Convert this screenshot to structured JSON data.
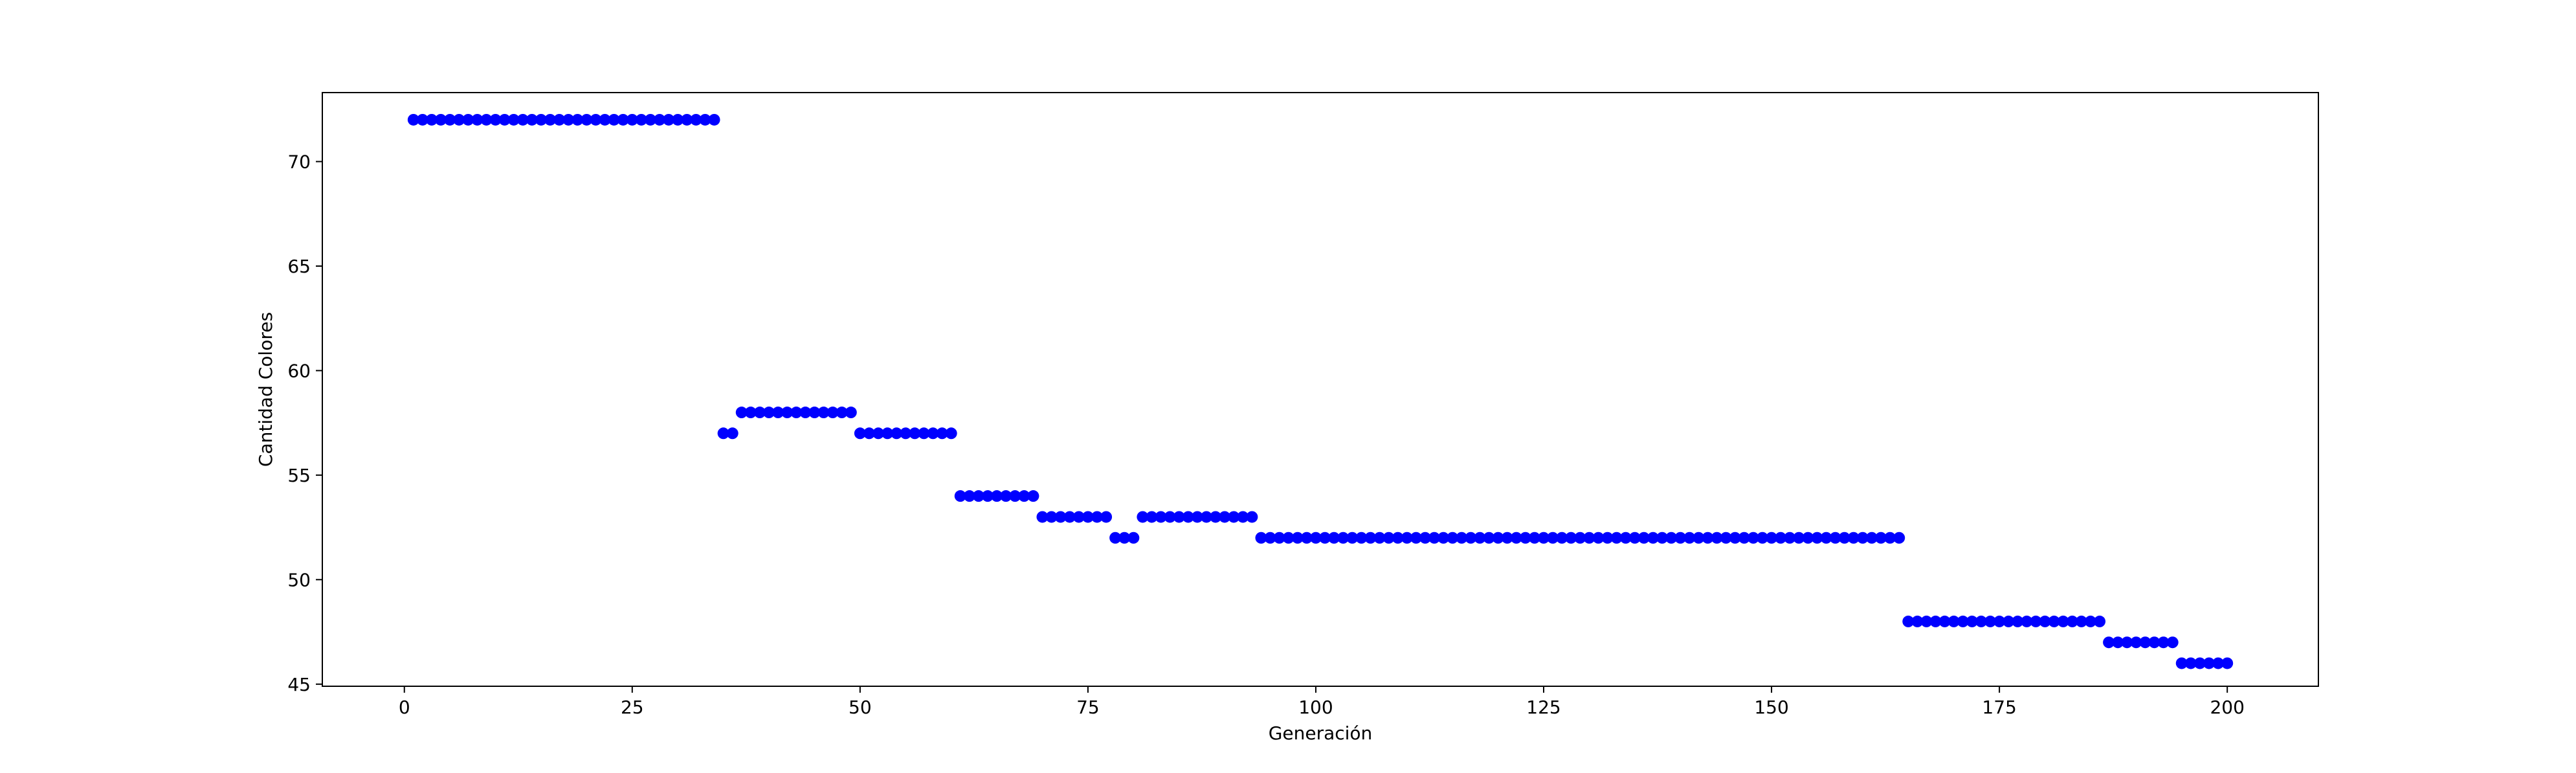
{
  "chart_data": {
    "type": "scatter",
    "title": "",
    "xlabel": "Generación",
    "ylabel": "Cantidad Colores",
    "xlim": [
      -9,
      210
    ],
    "ylim": [
      44.9,
      73.3
    ],
    "xticks": [
      0,
      25,
      50,
      75,
      100,
      125,
      150,
      175,
      200
    ],
    "yticks": [
      45,
      50,
      55,
      60,
      65,
      70
    ],
    "grid": false,
    "legend": "none",
    "marker_color": "#0000ff",
    "segments": [
      {
        "from": 1,
        "to": 34,
        "y": 72
      },
      {
        "from": 35,
        "to": 36,
        "y": 57
      },
      {
        "from": 37,
        "to": 49,
        "y": 58
      },
      {
        "from": 50,
        "to": 60,
        "y": 57
      },
      {
        "from": 61,
        "to": 69,
        "y": 54
      },
      {
        "from": 70,
        "to": 77,
        "y": 53
      },
      {
        "from": 78,
        "to": 80,
        "y": 52
      },
      {
        "from": 81,
        "to": 93,
        "y": 53
      },
      {
        "from": 94,
        "to": 164,
        "y": 52
      },
      {
        "from": 165,
        "to": 186,
        "y": 48
      },
      {
        "from": 187,
        "to": 194,
        "y": 47
      },
      {
        "from": 195,
        "to": 200,
        "y": 46
      }
    ]
  }
}
